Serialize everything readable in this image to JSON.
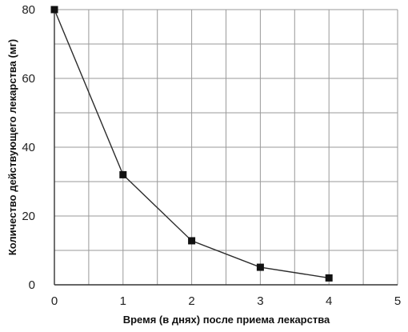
{
  "chart_data": {
    "type": "line",
    "title": "",
    "xlabel": "Время (в днях) после приема лекарства",
    "ylabel": "Количество действующего лекарства (мг)",
    "x": [
      0,
      1,
      2,
      3,
      4
    ],
    "series": [
      {
        "values": [
          80,
          32,
          12.8,
          5.1,
          2
        ]
      }
    ],
    "xlim": [
      0,
      5
    ],
    "ylim": [
      0,
      80
    ],
    "x_ticks": [
      "0",
      "1",
      "2",
      "3",
      "4",
      "5"
    ],
    "y_ticks": [
      "0",
      "20",
      "40",
      "60",
      "80"
    ],
    "grid": true,
    "marker": "square",
    "colors": {
      "line": "#2b2b2b",
      "grid": "#9a9a9a",
      "marker": "#111111"
    }
  }
}
